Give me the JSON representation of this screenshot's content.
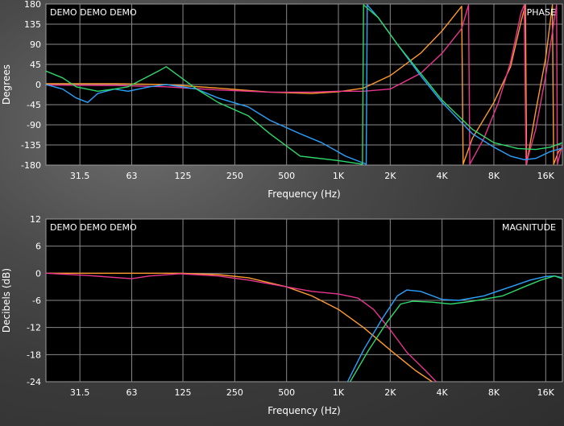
{
  "chart_data": [
    {
      "type": "line",
      "panel": "phase",
      "watermark": "DEMO DEMO DEMO",
      "corner_label": "PHASE",
      "xlabel": "Frequency (Hz)",
      "ylabel": "Degrees",
      "x_scale": "log",
      "xlim": [
        20,
        20000
      ],
      "ylim": [
        -180,
        180
      ],
      "grid": true,
      "x_ticks": [
        {
          "value": 31.5,
          "label": "31.5"
        },
        {
          "value": 63,
          "label": "63"
        },
        {
          "value": 125,
          "label": "125"
        },
        {
          "value": 250,
          "label": "250"
        },
        {
          "value": 500,
          "label": "500"
        },
        {
          "value": 1000,
          "label": "1K"
        },
        {
          "value": 2000,
          "label": "2K"
        },
        {
          "value": 4000,
          "label": "4K"
        },
        {
          "value": 8000,
          "label": "8K"
        },
        {
          "value": 16000,
          "label": "16K"
        }
      ],
      "y_ticks": [
        {
          "value": 180,
          "label": "180"
        },
        {
          "value": 135,
          "label": "135"
        },
        {
          "value": 90,
          "label": "90"
        },
        {
          "value": 45,
          "label": "45"
        },
        {
          "value": 0,
          "label": "0"
        },
        {
          "value": -45,
          "label": "-45"
        },
        {
          "value": -90,
          "label": "-90"
        },
        {
          "value": -135,
          "label": "-135"
        },
        {
          "value": -180,
          "label": "-180"
        }
      ],
      "series": [
        {
          "color": "#ff9a2e",
          "points": [
            [
              20,
              2
            ],
            [
              50,
              2
            ],
            [
              100,
              0
            ],
            [
              200,
              -8
            ],
            [
              400,
              -17
            ],
            [
              700,
              -20
            ],
            [
              1000,
              -16
            ],
            [
              1400,
              -8
            ],
            [
              2000,
              20
            ],
            [
              3000,
              70
            ],
            [
              4000,
              120
            ],
            [
              5200,
              175
            ],
            [
              5300,
              -178
            ],
            [
              6000,
              -120
            ],
            [
              8000,
              -40
            ],
            [
              10000,
              40
            ],
            [
              11500,
              140
            ],
            [
              12200,
              178
            ],
            [
              12400,
              -178
            ],
            [
              14000,
              -60
            ],
            [
              16000,
              60
            ],
            [
              17500,
              178
            ],
            [
              17800,
              -178
            ],
            [
              19000,
              -150
            ],
            [
              20000,
              -140
            ]
          ]
        },
        {
          "color": "#e8358f",
          "points": [
            [
              20,
              -1
            ],
            [
              50,
              -2
            ],
            [
              100,
              -5
            ],
            [
              200,
              -12
            ],
            [
              400,
              -17
            ],
            [
              700,
              -17
            ],
            [
              1000,
              -15
            ],
            [
              1400,
              -15
            ],
            [
              2000,
              -10
            ],
            [
              3000,
              25
            ],
            [
              4000,
              70
            ],
            [
              5200,
              125
            ],
            [
              5700,
              178
            ],
            [
              5800,
              -178
            ],
            [
              7000,
              -120
            ],
            [
              8500,
              -40
            ],
            [
              10000,
              50
            ],
            [
              11500,
              160
            ],
            [
              12000,
              178
            ],
            [
              12300,
              -178
            ],
            [
              14000,
              -100
            ],
            [
              16000,
              20
            ],
            [
              18500,
              178
            ],
            [
              18700,
              -178
            ],
            [
              20000,
              -135
            ]
          ]
        },
        {
          "color": "#2aa3ff",
          "points": [
            [
              20,
              0
            ],
            [
              25,
              -10
            ],
            [
              30,
              -30
            ],
            [
              35,
              -40
            ],
            [
              40,
              -20
            ],
            [
              50,
              -10
            ],
            [
              60,
              -15
            ],
            [
              80,
              -5
            ],
            [
              100,
              0
            ],
            [
              150,
              -10
            ],
            [
              200,
              -30
            ],
            [
              300,
              -50
            ],
            [
              400,
              -80
            ],
            [
              600,
              -110
            ],
            [
              800,
              -130
            ],
            [
              1100,
              -160
            ],
            [
              1450,
              -178
            ],
            [
              1470,
              178
            ],
            [
              1700,
              150
            ],
            [
              2200,
              90
            ],
            [
              3000,
              20
            ],
            [
              4000,
              -40
            ],
            [
              6000,
              -110
            ],
            [
              8000,
              -140
            ],
            [
              10000,
              -160
            ],
            [
              12000,
              -168
            ],
            [
              14000,
              -165
            ],
            [
              17000,
              -150
            ],
            [
              20000,
              -142
            ]
          ]
        },
        {
          "color": "#2fd86a",
          "points": [
            [
              20,
              30
            ],
            [
              25,
              15
            ],
            [
              30,
              -5
            ],
            [
              40,
              -15
            ],
            [
              50,
              -10
            ],
            [
              60,
              -5
            ],
            [
              90,
              30
            ],
            [
              100,
              40
            ],
            [
              150,
              -10
            ],
            [
              200,
              -40
            ],
            [
              300,
              -70
            ],
            [
              400,
              -110
            ],
            [
              600,
              -160
            ],
            [
              1000,
              -170
            ],
            [
              1380,
              -178
            ],
            [
              1400,
              178
            ],
            [
              1700,
              150
            ],
            [
              2200,
              90
            ],
            [
              3000,
              25
            ],
            [
              4000,
              -35
            ],
            [
              6000,
              -100
            ],
            [
              8000,
              -130
            ],
            [
              11000,
              -143
            ],
            [
              14000,
              -145
            ],
            [
              17000,
              -140
            ],
            [
              20000,
              -130
            ]
          ]
        }
      ]
    },
    {
      "type": "line",
      "panel": "magnitude",
      "watermark": "DEMO DEMO DEMO",
      "corner_label": "MAGNITUDE",
      "xlabel": "Frequency (Hz)",
      "ylabel": "Decibels (dB)",
      "x_scale": "log",
      "xlim": [
        20,
        20000
      ],
      "ylim": [
        -24,
        12
      ],
      "grid": true,
      "x_ticks": [
        {
          "value": 31.5,
          "label": "31.5"
        },
        {
          "value": 63,
          "label": "63"
        },
        {
          "value": 125,
          "label": "125"
        },
        {
          "value": 250,
          "label": "250"
        },
        {
          "value": 500,
          "label": "500"
        },
        {
          "value": 1000,
          "label": "1K"
        },
        {
          "value": 2000,
          "label": "2K"
        },
        {
          "value": 4000,
          "label": "4K"
        },
        {
          "value": 8000,
          "label": "8K"
        },
        {
          "value": 16000,
          "label": "16K"
        }
      ],
      "y_ticks": [
        {
          "value": 12,
          "label": "12"
        },
        {
          "value": 6,
          "label": "6"
        },
        {
          "value": 0,
          "label": "0"
        },
        {
          "value": -6,
          "label": "-6"
        },
        {
          "value": -12,
          "label": "-12"
        },
        {
          "value": -18,
          "label": "-18"
        },
        {
          "value": -24,
          "label": "-24"
        }
      ],
      "series": [
        {
          "color": "#ff9a2e",
          "points": [
            [
              20,
              0
            ],
            [
              60,
              0
            ],
            [
              120,
              0
            ],
            [
              200,
              -0.3
            ],
            [
              300,
              -1
            ],
            [
              500,
              -3
            ],
            [
              700,
              -5
            ],
            [
              1000,
              -8
            ],
            [
              1400,
              -12
            ],
            [
              2000,
              -17
            ],
            [
              2800,
              -21.5
            ],
            [
              3500,
              -24
            ]
          ]
        },
        {
          "color": "#e8358f",
          "points": [
            [
              20,
              0
            ],
            [
              35,
              -0.5
            ],
            [
              63,
              -1.2
            ],
            [
              80,
              -0.6
            ],
            [
              120,
              -0.1
            ],
            [
              200,
              -0.6
            ],
            [
              300,
              -1.5
            ],
            [
              500,
              -3
            ],
            [
              700,
              -4
            ],
            [
              1000,
              -4.6
            ],
            [
              1300,
              -5.5
            ],
            [
              1600,
              -8
            ],
            [
              2000,
              -12.5
            ],
            [
              2500,
              -17.5
            ],
            [
              3200,
              -21.5
            ],
            [
              3700,
              -24
            ]
          ]
        },
        {
          "color": "#2aa3ff",
          "points": [
            [
              1130,
              -24
            ],
            [
              1400,
              -17
            ],
            [
              1800,
              -10
            ],
            [
              2200,
              -5
            ],
            [
              2500,
              -3.7
            ],
            [
              3000,
              -4
            ],
            [
              4000,
              -5.8
            ],
            [
              5000,
              -6
            ],
            [
              7000,
              -5
            ],
            [
              10000,
              -3
            ],
            [
              13000,
              -1.5
            ],
            [
              16000,
              -0.7
            ],
            [
              18000,
              -0.6
            ],
            [
              20000,
              -1
            ]
          ]
        },
        {
          "color": "#2fd86a",
          "points": [
            [
              1170,
              -24
            ],
            [
              1500,
              -17
            ],
            [
              1900,
              -11
            ],
            [
              2300,
              -6.8
            ],
            [
              2700,
              -6.2
            ],
            [
              3500,
              -6.4
            ],
            [
              4500,
              -6.8
            ],
            [
              6000,
              -6.2
            ],
            [
              9000,
              -5
            ],
            [
              12000,
              -3
            ],
            [
              15000,
              -1.5
            ],
            [
              18000,
              -0.6
            ],
            [
              20000,
              -1.2
            ]
          ]
        }
      ]
    }
  ]
}
